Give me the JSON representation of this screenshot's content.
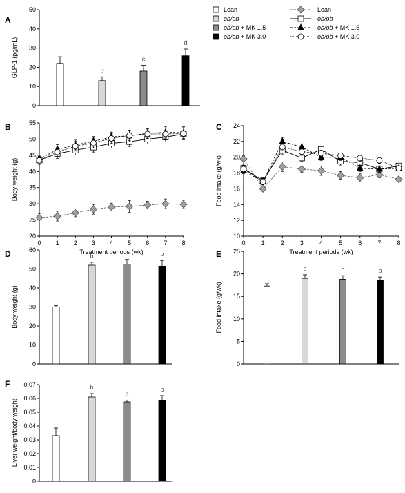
{
  "legend_bars": [
    {
      "label": "Lean",
      "fill": "#ffffff"
    },
    {
      "label": "ob/ob",
      "fill": "#d8d8d8"
    },
    {
      "label": "ob/ob + MK 1.5",
      "fill": "#8c8c8c"
    },
    {
      "label": "ob/ob + MK 3.0",
      "fill": "#000000"
    }
  ],
  "legend_lines": [
    {
      "label": "Lean",
      "marker": "diamond",
      "fill": "#a0a0a0",
      "dash": "3,2"
    },
    {
      "label": "ob/ob",
      "marker": "square",
      "fill": "#ffffff",
      "dash": ""
    },
    {
      "label": "ob/ob + MK 1.5",
      "marker": "triangle",
      "fill": "#000000",
      "dash": "3,2"
    },
    {
      "label": "ob/ob + MK 3.0",
      "marker": "circle",
      "fill": "#ffffff",
      "dash": "1,1"
    }
  ],
  "chart_data": [
    {
      "panel": "A",
      "type": "bar",
      "ylabel": "GLP-1 (pg/mL)",
      "ylim": [
        0,
        50
      ],
      "yticks": [
        0,
        10,
        20,
        30,
        40,
        50
      ],
      "categories": [
        "Lean",
        "ob/ob",
        "ob/ob + MK 1.5",
        "ob/ob + MK 3.0"
      ],
      "values": [
        22,
        13,
        18,
        26
      ],
      "errors": [
        3.5,
        2,
        3,
        3.5
      ],
      "annotations": [
        "",
        "b",
        "c",
        "d"
      ]
    },
    {
      "panel": "B",
      "type": "line",
      "xlabel": "Treatment periods (wk)",
      "ylabel": "Body weight (g)",
      "x": [
        0,
        1,
        2,
        3,
        4,
        5,
        6,
        7,
        8
      ],
      "xlim": [
        0,
        8
      ],
      "ylim": [
        20,
        55
      ],
      "yticks": [
        20,
        25,
        30,
        35,
        40,
        45,
        50,
        55
      ],
      "series": [
        {
          "name": "Lean",
          "values": [
            25.7,
            26.2,
            27.2,
            28.3,
            29,
            29.2,
            29.6,
            30,
            29.8
          ],
          "errors": [
            1.3,
            1.5,
            1.2,
            1.5,
            1.2,
            1.8,
            1.2,
            1.5,
            1.3
          ]
        },
        {
          "name": "ob/ob",
          "values": [
            43.5,
            45.5,
            46.6,
            47.5,
            48.7,
            49.2,
            50,
            50.6,
            51.6
          ],
          "errors": [
            1.2,
            1.5,
            1.5,
            1.5,
            1.5,
            1.5,
            1.5,
            1.5,
            1.8
          ]
        },
        {
          "name": "ob/ob + MK 1.5",
          "values": [
            43.8,
            46.8,
            48.2,
            49.3,
            50.7,
            51,
            51.8,
            52.1,
            52
          ],
          "errors": [
            1.2,
            1.5,
            1.5,
            1.5,
            1.5,
            1.8,
            1.5,
            1.8,
            1.8
          ]
        },
        {
          "name": "ob/ob + MK 3.0",
          "values": [
            43.4,
            46,
            47.8,
            48.8,
            50.2,
            51.1,
            51.6,
            51.6,
            51.7
          ],
          "errors": [
            1.2,
            1.5,
            1.5,
            1.5,
            1.5,
            1.5,
            1.5,
            1.8,
            1.8
          ]
        }
      ]
    },
    {
      "panel": "C",
      "type": "line",
      "xlabel": "Treatment periods (wk)",
      "ylabel": "Food intake (g/wk)",
      "x": [
        0,
        1,
        2,
        3,
        4,
        5,
        6,
        7,
        8
      ],
      "xlim": [
        0,
        8
      ],
      "ylim": [
        10,
        24
      ],
      "yticks": [
        10,
        12,
        14,
        16,
        18,
        20,
        22,
        24
      ],
      "series": [
        {
          "name": "Lean",
          "values": [
            19.8,
            16,
            18.8,
            18.5,
            18.3,
            17.7,
            17.4,
            17.8,
            17.2
          ],
          "errors": [
            0.4,
            0.3,
            0.6,
            0.4,
            0.6,
            0.5,
            0.5,
            0.4,
            0.3
          ]
        },
        {
          "name": "ob/ob",
          "values": [
            18.6,
            17,
            20.9,
            19.9,
            21,
            19.5,
            19.3,
            18.5,
            18.9
          ],
          "errors": [
            0.4,
            0.4,
            0.5,
            0.4,
            0.3,
            0.5,
            0.4,
            0.4,
            0.3
          ]
        },
        {
          "name": "ob/ob + MK 1.5",
          "values": [
            18.3,
            16.9,
            22,
            21.3,
            20,
            20,
            18.6,
            18.5,
            18.6
          ],
          "errors": [
            0.4,
            0.4,
            0.5,
            0.4,
            0.4,
            0.4,
            0.4,
            0.4,
            0.3
          ]
        },
        {
          "name": "ob/ob + MK 3.0",
          "values": [
            18.5,
            16.9,
            21.3,
            20.7,
            20.5,
            20.2,
            19.9,
            19.6,
            18.6
          ],
          "errors": [
            0.4,
            0.4,
            0.5,
            0.4,
            0.4,
            0.3,
            0.4,
            0.4,
            0.3
          ]
        }
      ]
    },
    {
      "panel": "D",
      "type": "bar",
      "ylabel": "Body weight (g)",
      "ylim": [
        0,
        60
      ],
      "yticks": [
        0,
        10,
        20,
        30,
        40,
        50,
        60
      ],
      "categories": [
        "Lean",
        "ob/ob",
        "ob/ob + MK 1.5",
        "ob/ob + MK 3.0"
      ],
      "values": [
        30,
        52,
        52.5,
        51.5
      ],
      "errors": [
        0.8,
        1.5,
        2.5,
        3
      ],
      "annotations": [
        "",
        "b",
        "b",
        "b"
      ]
    },
    {
      "panel": "E",
      "type": "bar",
      "ylabel": "Food intake (g/wk)",
      "ylim": [
        0,
        25
      ],
      "yticks": [
        0,
        5,
        10,
        15,
        20,
        25
      ],
      "categories": [
        "Lean",
        "ob/ob",
        "ob/ob + MK 1.5",
        "ob/ob + MK 3.0"
      ],
      "values": [
        17.3,
        19,
        18.8,
        18.5
      ],
      "errors": [
        0.5,
        0.8,
        0.8,
        0.8
      ],
      "annotations": [
        "",
        "b",
        "b",
        "b"
      ]
    },
    {
      "panel": "F",
      "type": "bar",
      "ylabel": "Liver weight/body weight",
      "ylim": [
        0,
        0.07
      ],
      "yticks": [
        0,
        0.01,
        0.02,
        0.03,
        0.04,
        0.05,
        0.06,
        0.07
      ],
      "categories": [
        "Lean",
        "ob/ob",
        "ob/ob + MK 1.5",
        "ob/ob + MK 3.0"
      ],
      "values": [
        0.033,
        0.061,
        0.0575,
        0.0585
      ],
      "errors": [
        0.0055,
        0.0025,
        0.0013,
        0.0035
      ],
      "annotations": [
        "",
        "b",
        "b",
        "b"
      ]
    }
  ]
}
